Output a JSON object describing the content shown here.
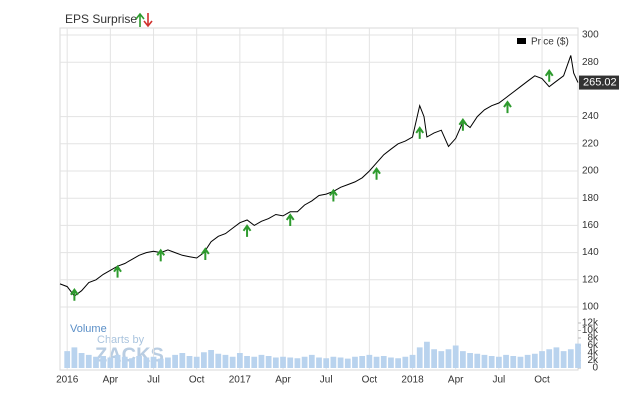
{
  "chart_data": [
    {
      "type": "line",
      "title": "EPS Surprise",
      "legend": "Price ($)",
      "last_price": 265.02,
      "xlim": [
        -0.5,
        35.5
      ],
      "xticks": [
        {
          "value": 0,
          "label": "2016"
        },
        {
          "value": 3,
          "label": "Apr"
        },
        {
          "value": 6,
          "label": "Jul"
        },
        {
          "value": 9,
          "label": "Oct"
        },
        {
          "value": 12,
          "label": "2017"
        },
        {
          "value": 15,
          "label": "Apr"
        },
        {
          "value": 18,
          "label": "Jul"
        },
        {
          "value": 21,
          "label": "Oct"
        },
        {
          "value": 24,
          "label": "2018"
        },
        {
          "value": 27,
          "label": "Apr"
        },
        {
          "value": 30,
          "label": "Jul"
        },
        {
          "value": 33,
          "label": "Oct"
        }
      ],
      "ylim": [
        100,
        300
      ],
      "yticks": [
        100,
        120,
        140,
        160,
        180,
        200,
        220,
        240,
        280,
        300
      ],
      "grid": true,
      "series": [
        {
          "name": "Price ($)",
          "color": "#000000",
          "x": [
            -0.5,
            0,
            0.5,
            1,
            1.5,
            2,
            2.5,
            3,
            3.5,
            4,
            4.5,
            5,
            5.5,
            6,
            6.5,
            7,
            7.5,
            8,
            8.5,
            9,
            9.5,
            10,
            10.5,
            11,
            11.5,
            12,
            12.5,
            13,
            13.5,
            14,
            14.5,
            15,
            15.5,
            16,
            16.5,
            17,
            17.5,
            18,
            18.5,
            19,
            19.5,
            20,
            20.5,
            21,
            21.5,
            22,
            22.5,
            23,
            23.5,
            24,
            24.5,
            24.8,
            25,
            25.5,
            26,
            26.5,
            27,
            27.5,
            28,
            28.5,
            29,
            29.5,
            30,
            30.5,
            31,
            31.5,
            32,
            32.5,
            33,
            33.5,
            34,
            34.5,
            35,
            35.2,
            35.5
          ],
          "values": [
            117,
            115,
            108,
            112,
            118,
            120,
            124,
            127,
            130,
            132,
            135,
            138,
            140,
            141,
            140,
            142,
            140,
            138,
            137,
            136,
            140,
            148,
            152,
            154,
            158,
            162,
            164,
            160,
            163,
            165,
            168,
            167,
            170,
            170,
            175,
            178,
            182,
            183,
            185,
            188,
            190,
            192,
            195,
            200,
            206,
            212,
            216,
            220,
            222,
            225,
            248,
            240,
            225,
            228,
            230,
            218,
            224,
            236,
            232,
            240,
            245,
            248,
            250,
            254,
            258,
            262,
            266,
            270,
            268,
            262,
            266,
            270,
            285,
            272,
            265
          ]
        }
      ],
      "eps": {
        "color": "#2e9b2e",
        "x": [
          0.5,
          3.5,
          6.5,
          9.6,
          12.5,
          15.5,
          18.5,
          21.5,
          24.5,
          27.5,
          30.6,
          33.5
        ],
        "values": [
          109,
          126,
          138,
          139,
          156,
          164,
          182,
          198,
          228,
          234,
          247,
          270
        ]
      }
    },
    {
      "type": "bar",
      "title": "Volume",
      "watermark": [
        "Charts by",
        "ZACKS"
      ],
      "color": "#b9d3ee",
      "ylim": [
        0,
        12000
      ],
      "yticks": [
        0,
        {
          "value": 2000,
          "label": "2k"
        },
        {
          "value": 4000,
          "label": "4k"
        },
        {
          "value": 6000,
          "label": "6k"
        },
        {
          "value": 8000,
          "label": "8k"
        },
        {
          "value": 10000,
          "label": "10k"
        },
        {
          "value": 12000,
          "label": "12k"
        }
      ],
      "x": [
        0,
        0.5,
        1,
        1.5,
        2,
        2.5,
        3,
        3.5,
        4,
        4.5,
        5,
        5.5,
        6,
        6.5,
        7,
        7.5,
        8,
        8.5,
        9,
        9.5,
        10,
        10.5,
        11,
        11.5,
        12,
        12.5,
        13,
        13.5,
        14,
        14.5,
        15,
        15.5,
        16,
        16.5,
        17,
        17.5,
        18,
        18.5,
        19,
        19.5,
        20,
        20.5,
        21,
        21.5,
        22,
        22.5,
        23,
        23.5,
        24,
        24.5,
        25,
        25.5,
        26,
        26.5,
        27,
        27.5,
        28,
        28.5,
        29,
        29.5,
        30,
        30.5,
        31,
        31.5,
        32,
        32.5,
        33,
        33.5,
        34,
        34.5,
        35,
        35.5
      ],
      "values": [
        4500,
        5500,
        4000,
        3500,
        3000,
        3200,
        2800,
        3500,
        3000,
        2600,
        3200,
        2800,
        3000,
        2500,
        2800,
        3500,
        4000,
        3200,
        3000,
        4200,
        4800,
        3800,
        3500,
        3000,
        4000,
        3200,
        3000,
        3500,
        3200,
        2800,
        3000,
        2800,
        2600,
        3000,
        3500,
        2800,
        2600,
        3000,
        2800,
        2500,
        3000,
        3200,
        3500,
        3000,
        3200,
        2800,
        2600,
        3000,
        3500,
        5500,
        7000,
        5000,
        4500,
        5000,
        6000,
        4500,
        4000,
        3800,
        3500,
        3200,
        3000,
        3500,
        3200,
        3000,
        3500,
        3800,
        4500,
        5000,
        5500,
        4500,
        5000,
        6500
      ]
    }
  ]
}
